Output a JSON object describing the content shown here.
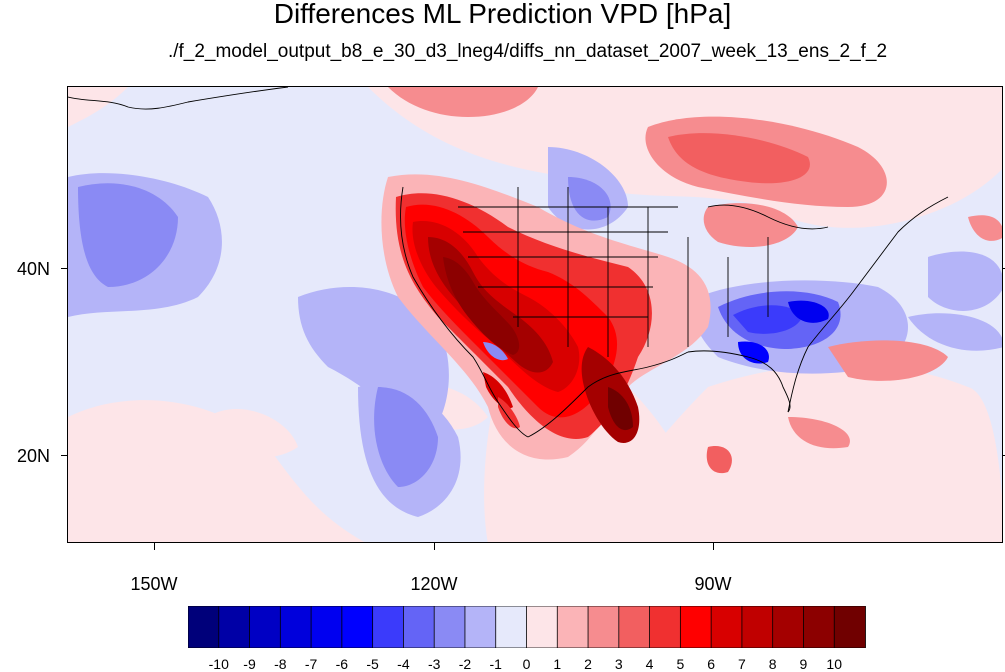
{
  "title": "Differences ML Prediction VPD [hPa]",
  "subtitle": "./f_2_model_output_b8_e_30_d3_lneg4/diffs_nn_dataset_2007_week_13_ens_2_f_2",
  "latitude_labels": [
    "40N",
    "20N"
  ],
  "longitude_labels": [
    "150W",
    "120W",
    "90W"
  ],
  "colorbar": {
    "labels": [
      "-10",
      "-9",
      "-8",
      "-7",
      "-6",
      "-5",
      "-4",
      "-3",
      "-2",
      "-1",
      "0",
      "1",
      "2",
      "3",
      "4",
      "5",
      "6",
      "7",
      "8",
      "9",
      "10"
    ],
    "colors": [
      "#00007a",
      "#0000a6",
      "#0000c4",
      "#0000dc",
      "#0000f0",
      "#0000ff",
      "#3b3bfb",
      "#6464f6",
      "#8a8af4",
      "#b4b4f8",
      "#e6e9fb",
      "#fde5e8",
      "#fbb4b7",
      "#f68c8f",
      "#f25f60",
      "#f03030",
      "#ff0000",
      "#d80000",
      "#c00000",
      "#a40000",
      "#8c0000",
      "#700000"
    ]
  },
  "colors": {
    "background_field": "#e6e9fb",
    "positive_accent": "#ff0000",
    "negative_accent": "#0000ff"
  }
}
